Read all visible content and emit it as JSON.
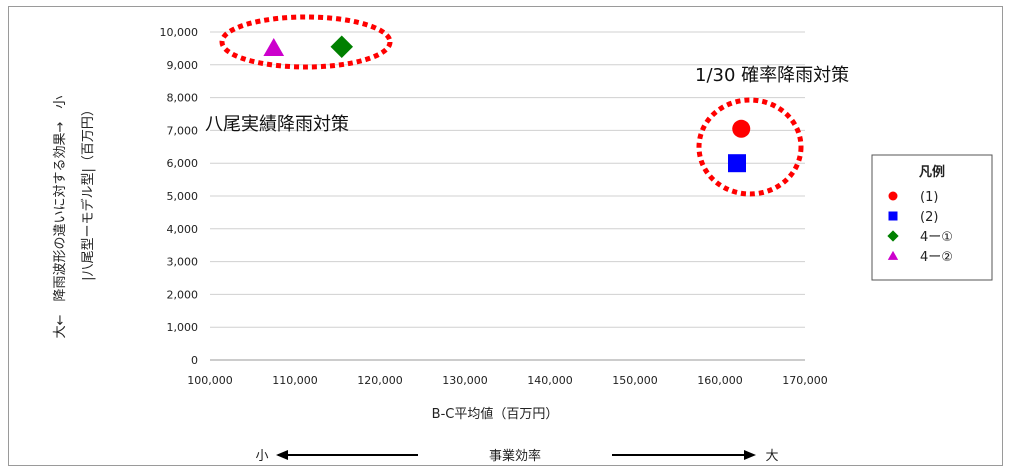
{
  "chart_data": {
    "type": "scatter",
    "xlabel": "B-C平均値（百万円）",
    "ylabel_line1": "大←　降雨波形の違いに対する効果→　小",
    "ylabel_line2": "|八尾型ーモデル型|（百万円）",
    "x_ticks": [
      "100,000",
      "110,000",
      "120,000",
      "130,000",
      "140,000",
      "150,000",
      "160,000",
      "170,000"
    ],
    "y_ticks": [
      "0",
      "1,000",
      "2,000",
      "3,000",
      "4,000",
      "5,000",
      "6,000",
      "7,000",
      "8,000",
      "9,000",
      "10,000"
    ],
    "xlim": [
      100000,
      170000
    ],
    "ylim": [
      0,
      10000
    ],
    "grid": "horizontal",
    "series": [
      {
        "name": "(1)",
        "marker": "circle",
        "color": "#ff0000",
        "x": [
          162500
        ],
        "y": [
          7050
        ]
      },
      {
        "name": "(2)",
        "marker": "square",
        "color": "#0000ff",
        "x": [
          162000
        ],
        "y": [
          6000
        ]
      },
      {
        "name": "4ー①",
        "marker": "diamond",
        "color": "#008000",
        "x": [
          115500
        ],
        "y": [
          9550
        ]
      },
      {
        "name": "4ー②",
        "marker": "triangle",
        "color": "#cc00cc",
        "x": [
          107500
        ],
        "y": [
          9500
        ]
      }
    ],
    "legend": {
      "title": "凡例",
      "placement": "right"
    },
    "annotations": {
      "yao": "八尾実績降雨対策",
      "rain30": "1/30 確率降雨対策"
    },
    "efficiency": {
      "left": "小",
      "center": "事業効率",
      "right": "大"
    }
  }
}
